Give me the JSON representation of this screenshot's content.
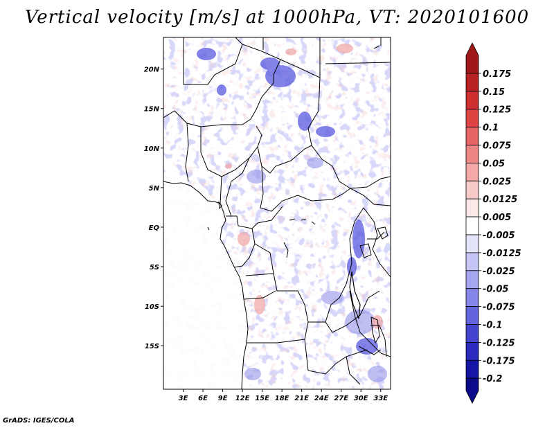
{
  "title": "Vertical velocity [m/s] at 1000hPa, VT: 2020101600",
  "footer": "GrADS: IGES/COLA",
  "map": {
    "lon_range": [
      0,
      34.5
    ],
    "lat_range": [
      -20.5,
      24
    ],
    "lat_ticks": [
      {
        "value": 20,
        "label": "20N"
      },
      {
        "value": 15,
        "label": "15N"
      },
      {
        "value": 10,
        "label": "10N"
      },
      {
        "value": 5,
        "label": "5N"
      },
      {
        "value": 0,
        "label": "EQ"
      },
      {
        "value": -5,
        "label": "5S"
      },
      {
        "value": -10,
        "label": "10S"
      },
      {
        "value": -15,
        "label": "15S"
      }
    ],
    "lon_ticks": [
      {
        "value": 3,
        "label": "3E"
      },
      {
        "value": 6,
        "label": "6E"
      },
      {
        "value": 9,
        "label": "9E"
      },
      {
        "value": 12,
        "label": "12E"
      },
      {
        "value": 15,
        "label": "15E"
      },
      {
        "value": 18,
        "label": "18E"
      },
      {
        "value": 21,
        "label": "21E"
      },
      {
        "value": 24,
        "label": "24E"
      },
      {
        "value": 27,
        "label": "27E"
      },
      {
        "value": 30,
        "label": "30E"
      },
      {
        "value": 33,
        "label": "33E"
      }
    ]
  },
  "colorbar": {
    "labels": [
      "0.175",
      "0.15",
      "0.125",
      "0.1",
      "0.075",
      "0.05",
      "0.025",
      "0.0125",
      "0.005",
      "-0.005",
      "-0.0125",
      "-0.025",
      "-0.05",
      "-0.075",
      "-0.1",
      "-0.125",
      "-0.175",
      "-0.2"
    ],
    "colors": [
      "#a01818",
      "#b82222",
      "#cc3030",
      "#dd4444",
      "#e66464",
      "#ee8686",
      "#f5a8a8",
      "#f9caca",
      "#fde8e8",
      "#ffffff",
      "#e4e4fb",
      "#c6c6f6",
      "#a6a6f0",
      "#8686e8",
      "#6464dd",
      "#4444cf",
      "#2a2abd",
      "#1616a6",
      "#0a0a8a"
    ]
  }
}
